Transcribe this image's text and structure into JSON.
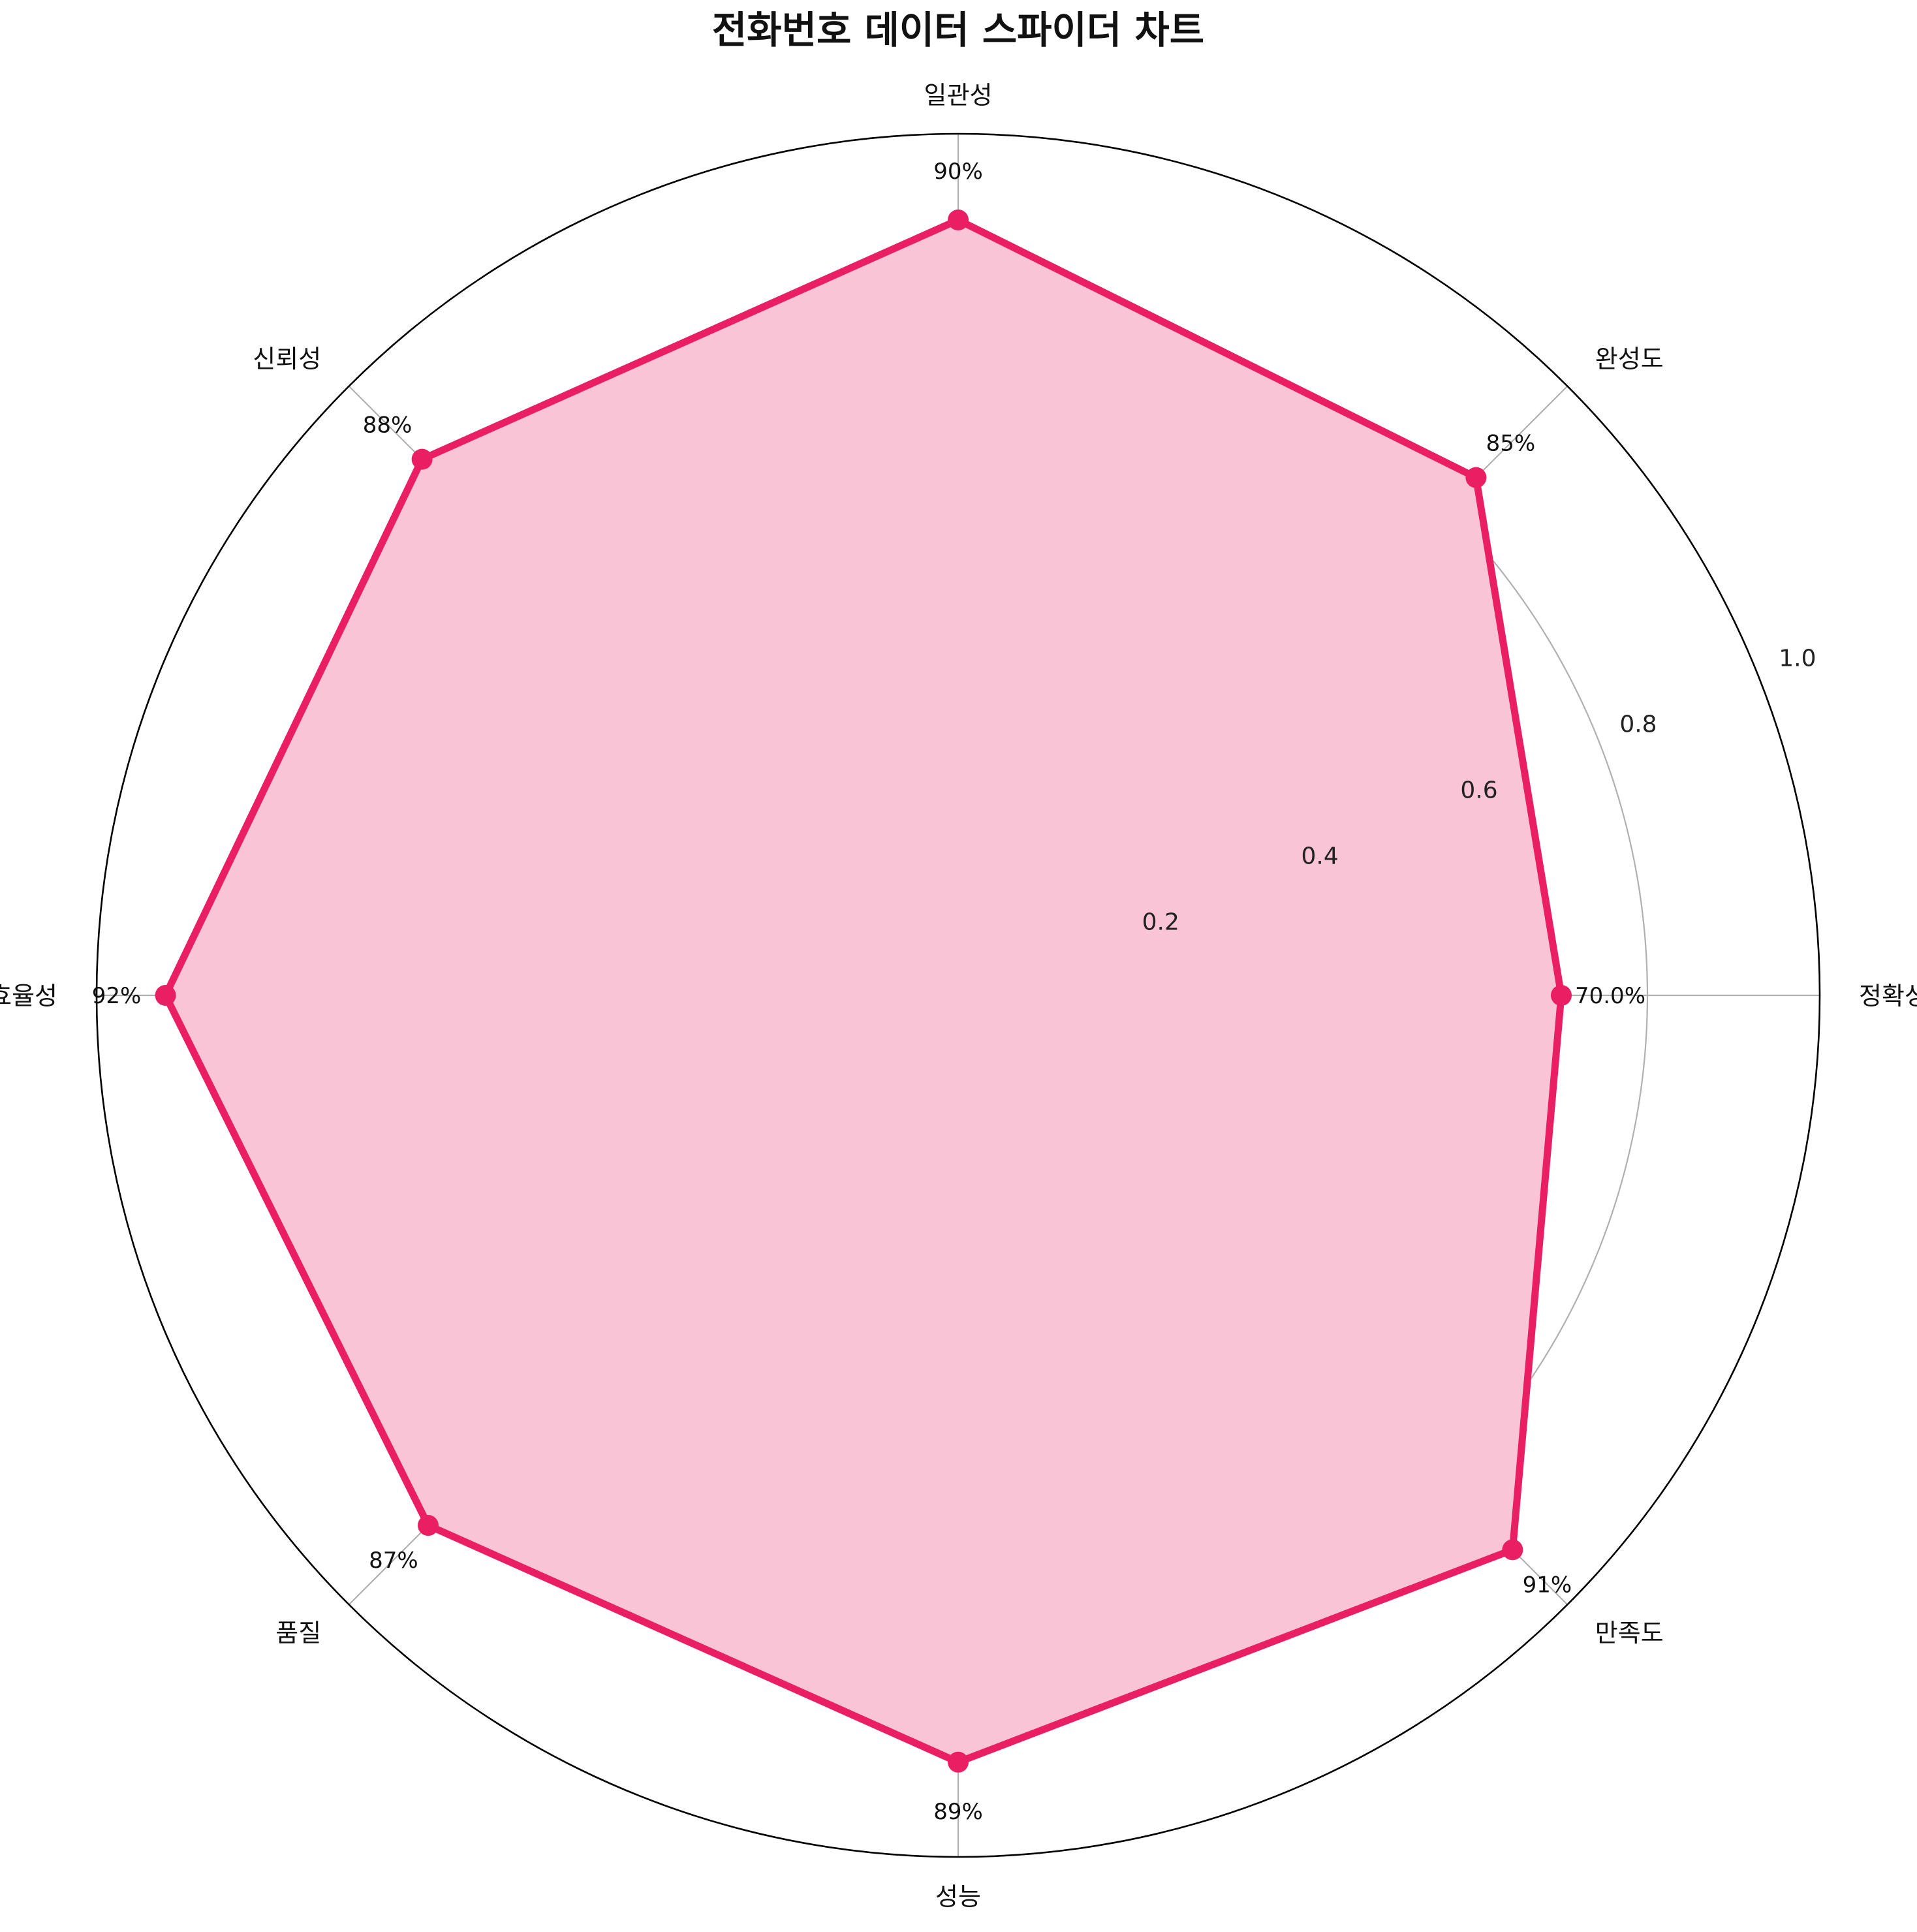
{
  "chart_data": {
    "type": "radar",
    "title": "전화번호 데이터 스파이더 차트",
    "categories": [
      "정확성",
      "완성도",
      "일관성",
      "신뢰성",
      "효율성",
      "품질",
      "성능",
      "만족도"
    ],
    "series": [
      {
        "values": [
          0.7,
          0.85,
          0.9,
          0.88,
          0.92,
          0.87,
          0.89,
          0.91
        ],
        "value_labels": [
          "70.0%",
          "85%",
          "90%",
          "88%",
          "92%",
          "87%",
          "89%",
          "91%"
        ]
      }
    ],
    "rlim": [
      0,
      1.0
    ],
    "rticks": [
      0.2,
      0.4,
      0.6,
      0.8,
      1.0
    ],
    "rtick_labels": [
      "0.2",
      "0.4",
      "0.6",
      "0.8",
      "1.0"
    ],
    "grid": true,
    "colors": {
      "line": "#e91e63",
      "fill": "#f8c4d6",
      "grid": "#b0b0b0",
      "frame": "#000000"
    }
  }
}
